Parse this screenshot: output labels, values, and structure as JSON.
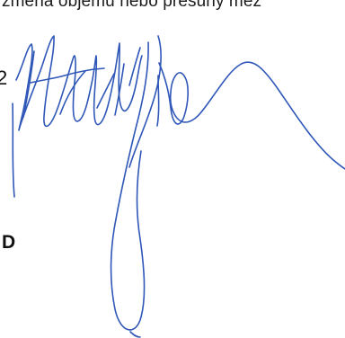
{
  "document": {
    "top_text": "změna objemu nebo přesuny mez",
    "left_mark_top": "2",
    "left_mark_bottom": "D"
  },
  "signature": {
    "description_name": "handwritten-signature",
    "ink_color": "#2f57b8"
  }
}
